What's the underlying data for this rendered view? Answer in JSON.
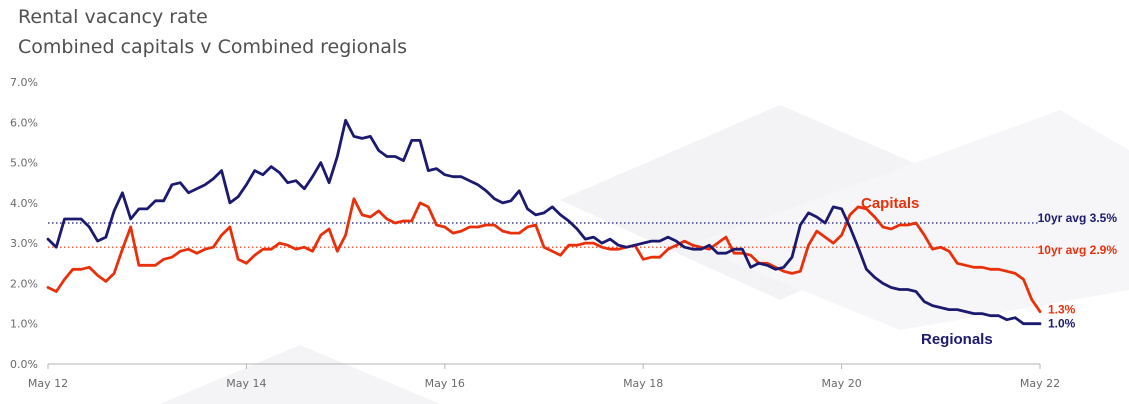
{
  "chart_data": {
    "type": "line",
    "title": "Rental vacancy rate",
    "subtitle": "Combined capitals v  Combined regionals",
    "xlabel": "",
    "ylabel": "",
    "ylim": [
      0,
      7
    ],
    "yticks": [
      "0.0%",
      "1.0%",
      "2.0%",
      "3.0%",
      "4.0%",
      "5.0%",
      "6.0%",
      "7.0%"
    ],
    "xticks": [
      "May 12",
      "May 14",
      "May 16",
      "May 18",
      "May 20",
      "May 22"
    ],
    "x_range": [
      0,
      120
    ],
    "grid": false,
    "series": [
      {
        "name": "Capitals",
        "color": "#e8300b",
        "end_label": "1.3%",
        "values": [
          1.9,
          1.8,
          2.1,
          2.35,
          2.35,
          2.4,
          2.2,
          2.05,
          2.25,
          2.85,
          3.4,
          2.45,
          2.45,
          2.45,
          2.6,
          2.65,
          2.8,
          2.85,
          2.75,
          2.85,
          2.9,
          3.2,
          3.4,
          2.6,
          2.5,
          2.7,
          2.85,
          2.85,
          3.0,
          2.95,
          2.85,
          2.9,
          2.8,
          3.2,
          3.35,
          2.8,
          3.2,
          4.1,
          3.7,
          3.65,
          3.8,
          3.6,
          3.5,
          3.55,
          3.55,
          4.0,
          3.9,
          3.45,
          3.4,
          3.25,
          3.3,
          3.4,
          3.4,
          3.45,
          3.45,
          3.3,
          3.25,
          3.25,
          3.4,
          3.45,
          2.9,
          2.8,
          2.7,
          2.95,
          2.95,
          3.0,
          3.0,
          2.9,
          2.85,
          2.85,
          2.9,
          2.95,
          2.6,
          2.65,
          2.65,
          2.85,
          2.95,
          3.05,
          2.95,
          2.9,
          2.85,
          3.0,
          3.15,
          2.75,
          2.75,
          2.7,
          2.5,
          2.5,
          2.4,
          2.3,
          2.25,
          2.3,
          2.95,
          3.3,
          3.15,
          3.0,
          3.2,
          3.7,
          3.9,
          3.85,
          3.65,
          3.4,
          3.35,
          3.45,
          3.45,
          3.5,
          3.2,
          2.85,
          2.9,
          2.8,
          2.5,
          2.45,
          2.4,
          2.4,
          2.35,
          2.35,
          2.3,
          2.25,
          2.1,
          1.6,
          1.3
        ]
      },
      {
        "name": "Regionals",
        "color": "#1c1a6e",
        "end_label": "1.0%",
        "values": [
          3.1,
          2.9,
          3.6,
          3.6,
          3.6,
          3.4,
          3.05,
          3.15,
          3.8,
          4.25,
          3.6,
          3.85,
          3.85,
          4.05,
          4.05,
          4.45,
          4.5,
          4.25,
          4.35,
          4.45,
          4.6,
          4.8,
          4.0,
          4.15,
          4.45,
          4.8,
          4.7,
          4.9,
          4.75,
          4.5,
          4.55,
          4.35,
          4.65,
          5.0,
          4.5,
          5.15,
          6.05,
          5.65,
          5.6,
          5.65,
          5.3,
          5.15,
          5.15,
          5.05,
          5.55,
          5.55,
          4.8,
          4.85,
          4.7,
          4.65,
          4.65,
          4.55,
          4.45,
          4.3,
          4.1,
          4.0,
          4.05,
          4.3,
          3.85,
          3.7,
          3.75,
          3.9,
          3.7,
          3.55,
          3.35,
          3.1,
          3.15,
          3.0,
          3.1,
          2.95,
          2.9,
          2.95,
          3.0,
          3.05,
          3.05,
          3.15,
          3.05,
          2.9,
          2.85,
          2.85,
          2.95,
          2.75,
          2.75,
          2.85,
          2.85,
          2.4,
          2.5,
          2.45,
          2.35,
          2.4,
          2.65,
          3.45,
          3.75,
          3.65,
          3.5,
          3.9,
          3.85,
          3.4,
          2.9,
          2.35,
          2.15,
          2.0,
          1.9,
          1.85,
          1.85,
          1.8,
          1.55,
          1.45,
          1.4,
          1.35,
          1.35,
          1.3,
          1.25,
          1.25,
          1.2,
          1.2,
          1.1,
          1.15,
          1.0,
          1.0,
          1.0
        ]
      }
    ],
    "reference_lines": [
      {
        "label": "10yr avg 3.5%",
        "value": 3.5,
        "color": "#1c1a6e"
      },
      {
        "label": "10yr avg 2.9%",
        "value": 2.9,
        "color": "#e8300b"
      }
    ],
    "annotations": [
      {
        "text": "Capitals",
        "color": "#e8300b"
      },
      {
        "text": "Regionals",
        "color": "#1c1a6e"
      }
    ]
  }
}
